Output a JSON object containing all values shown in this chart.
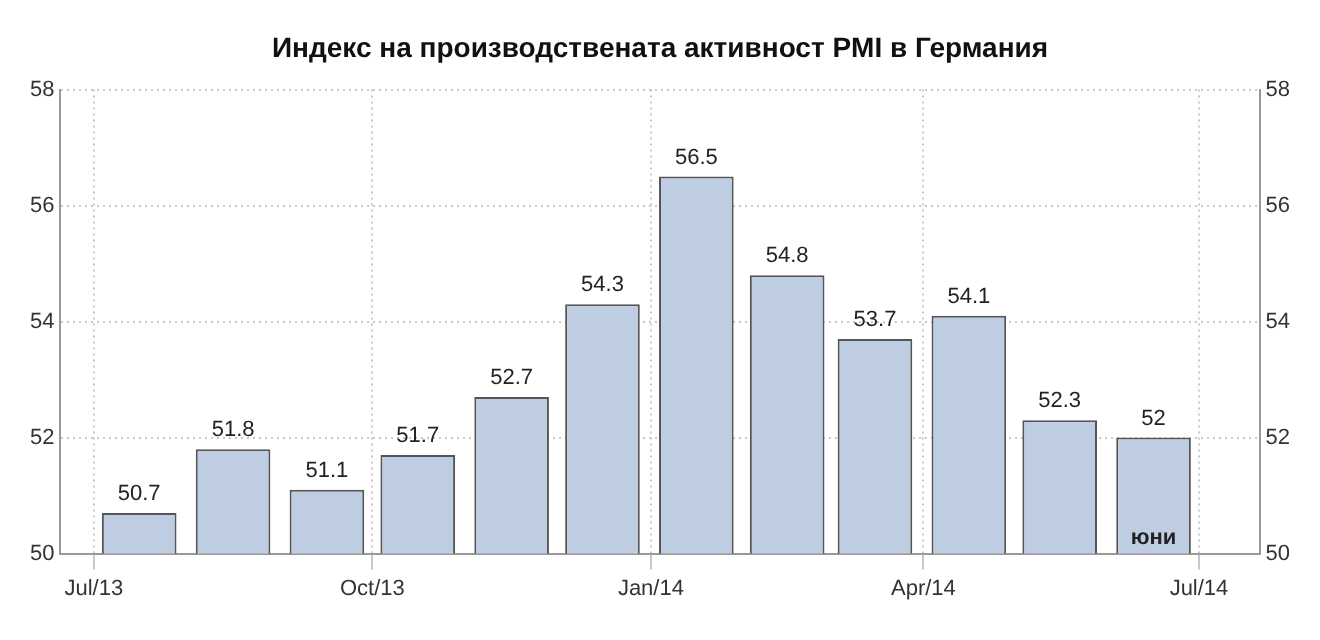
{
  "chart_data": {
    "type": "bar",
    "title": "Индекс на производствената активност PMI в Германия",
    "x": [
      "2013-07-16",
      "2013-08-16",
      "2013-09-16",
      "2013-10-16",
      "2013-11-16",
      "2013-12-16",
      "2014-01-16",
      "2014-02-15",
      "2014-03-16",
      "2014-04-16",
      "2014-05-16",
      "2014-06-16"
    ],
    "values": [
      50.7,
      51.8,
      51.1,
      51.7,
      52.7,
      54.3,
      56.5,
      54.8,
      53.7,
      54.1,
      52.3,
      52
    ],
    "color": "#bfcde3",
    "xlim": [
      "2013-06-20",
      "2014-07-21"
    ],
    "xticks": [
      {
        "value": "2013-07",
        "label": "Jul/13"
      },
      {
        "value": "2013-10",
        "label": "Oct/13"
      },
      {
        "value": "2014-01",
        "label": "Jan/14"
      },
      {
        "value": "2014-04",
        "label": "Apr/14"
      },
      {
        "value": "2014-07",
        "label": "Jul/14"
      }
    ],
    "ylim": [
      50,
      58
    ],
    "yticks": [
      50,
      52,
      54,
      56,
      58
    ],
    "y2lim": [
      50,
      58
    ],
    "y2ticks": [
      50,
      52,
      54,
      56,
      58
    ],
    "grid": true,
    "data_labels": true,
    "legend": false,
    "annotations": [
      "юни"
    ]
  }
}
